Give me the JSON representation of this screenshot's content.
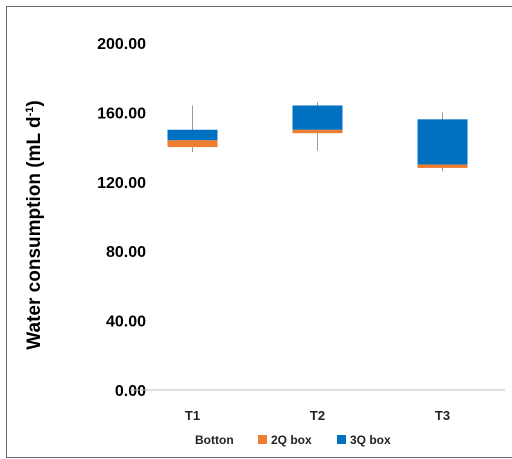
{
  "chart_data": {
    "type": "bar",
    "chart_kind": "stacked-box-plot",
    "categories": [
      "T1",
      "T2",
      "T3"
    ],
    "ylabel_main": "Water consumption (mL d",
    "ylabel_sup": "-1",
    "ylabel_end": ")",
    "ylim": [
      0,
      200
    ],
    "yticks": [
      0,
      40,
      80,
      120,
      160,
      200
    ],
    "ytick_labels": [
      "0.00",
      "40.00",
      "80.00",
      "120.00",
      "160.00",
      "200.00"
    ],
    "grid": false,
    "legend_position": "bottom",
    "legend": [
      "Botton",
      "2Q box",
      "3Q box"
    ],
    "series": [
      {
        "name": "Botton",
        "values": [
          140,
          148,
          128
        ],
        "color": "#ffffff"
      },
      {
        "name": "2Q box",
        "values": [
          4,
          2,
          2
        ],
        "color": "#ED7D31"
      },
      {
        "name": "3Q box",
        "values": [
          6,
          14,
          26
        ],
        "color": "#0070C0"
      }
    ],
    "whiskers": {
      "min": [
        137,
        138,
        126
      ],
      "max": [
        164,
        166,
        160
      ]
    }
  }
}
